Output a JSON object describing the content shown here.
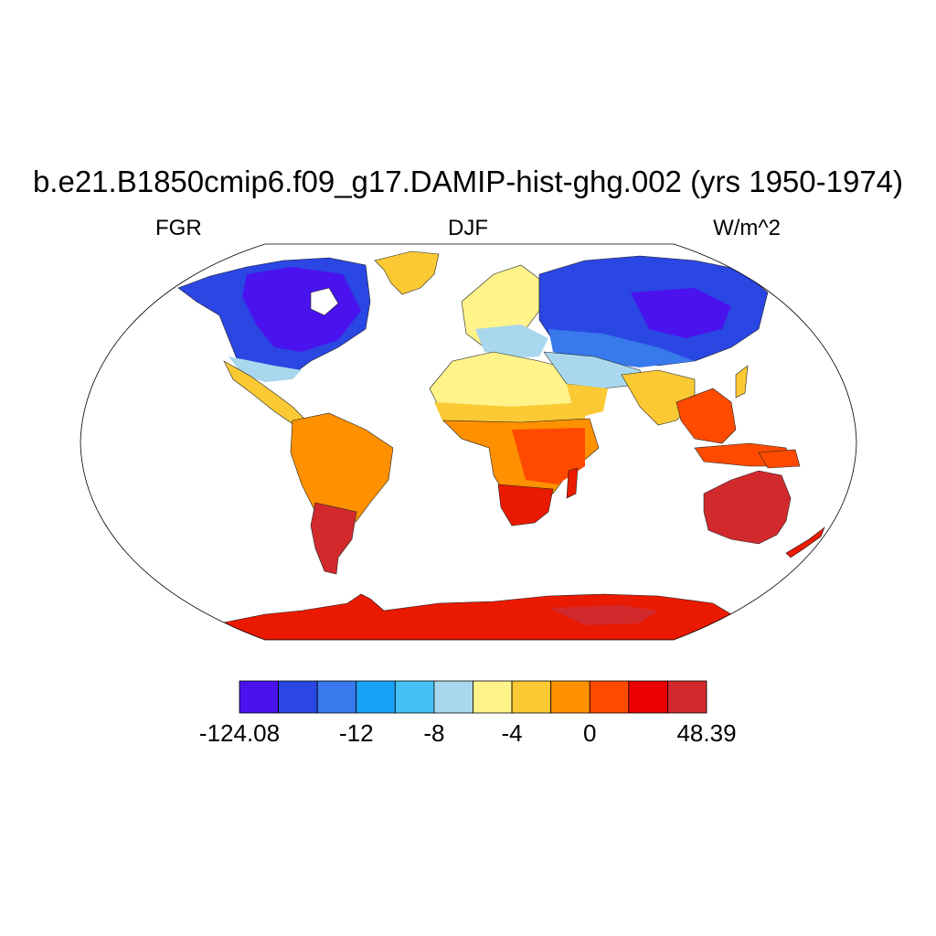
{
  "title": "b.e21.B1850cmip6.f09_g17.DAMIP-hist-ghg.002 (yrs 1950-1974)",
  "left_label": "FGR",
  "center_label": "DJF",
  "right_label": "W/m^2",
  "map": {
    "projection": "Robinson",
    "variable": "FGR",
    "season": "DJF",
    "units": "W/m^2",
    "background_color": "#ffffff",
    "region_colors": {
      "north_america_north": "#4a13ee",
      "north_america_mid": "#2a46e3",
      "greenland": "#fbc933",
      "siberia": "#2a46e3",
      "central_asia": "#3879eb",
      "mediterranean": "#a9d8ee",
      "sahara": "#fff38a",
      "sahel": "#fbc933",
      "central_africa": "#ff8c00",
      "southern_africa": "#e91a00",
      "south_america_north": "#ff8c00",
      "south_america_south": "#d2292d",
      "australia": "#d2292d",
      "antarctica": "#e91a00",
      "india": "#fbc933",
      "southeast_asia": "#ff4a00"
    }
  },
  "colorbar": {
    "colors": [
      "#4a13ee",
      "#2a46e3",
      "#3879eb",
      "#18a3f7",
      "#45c1f5",
      "#a9d8ee",
      "#fff38a",
      "#fbc933",
      "#ff9000",
      "#ff4a00",
      "#ea0000",
      "#d2292d"
    ],
    "tick_labels": [
      {
        "text": "-124.08",
        "index": 0
      },
      {
        "text": "-12",
        "index": 3
      },
      {
        "text": "-8",
        "index": 5
      },
      {
        "text": "-4",
        "index": 7
      },
      {
        "text": "0",
        "index": 9
      },
      {
        "text": "48.39",
        "index": 12
      }
    ]
  }
}
